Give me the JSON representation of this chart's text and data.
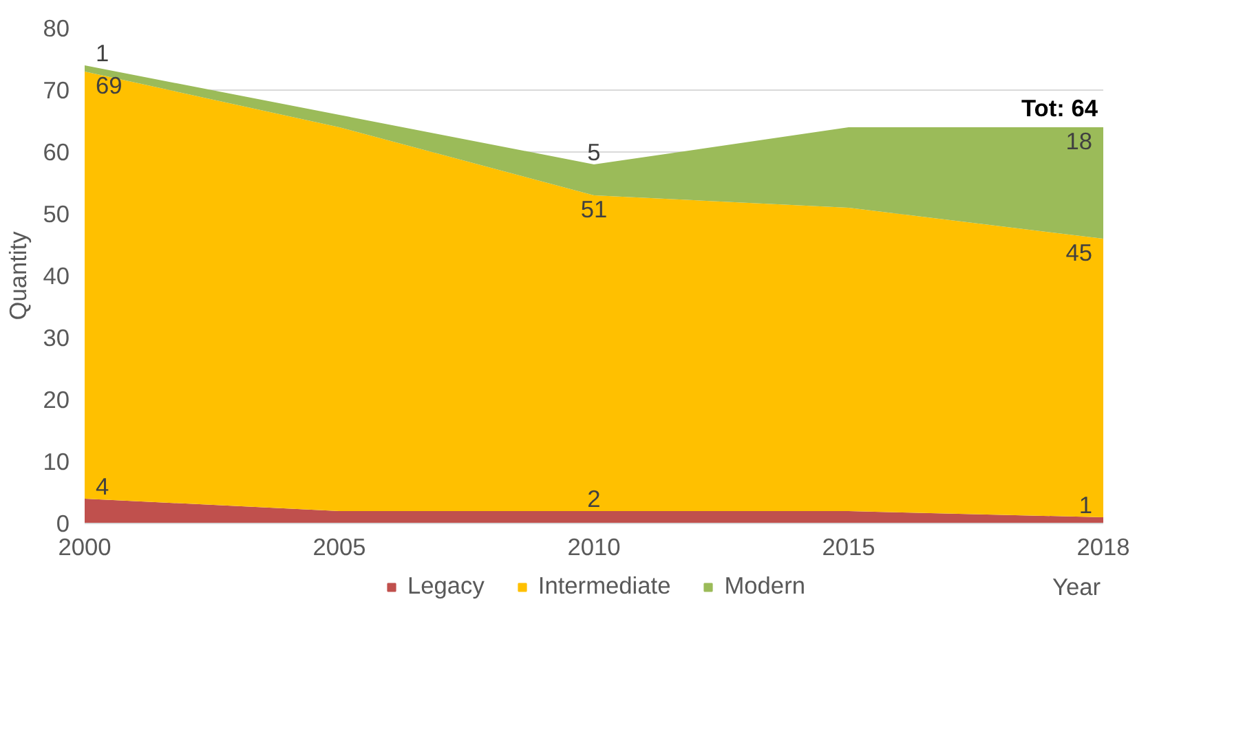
{
  "chart_data": {
    "type": "area",
    "stacked": true,
    "xlabel": "Year",
    "ylabel": "Quantity",
    "categories": [
      "2000",
      "2005",
      "2010",
      "2015",
      "2018"
    ],
    "series": [
      {
        "name": "Legacy",
        "color": "#c0504d",
        "values": [
          4,
          2,
          2,
          2,
          1
        ],
        "value_labels": [
          "4",
          null,
          "2",
          null,
          "1"
        ]
      },
      {
        "name": "Intermediate",
        "color": "#ffc000",
        "values": [
          69,
          62,
          51,
          49,
          45
        ],
        "value_labels": [
          "69",
          null,
          "51",
          null,
          "45"
        ]
      },
      {
        "name": "Modern",
        "color": "#9bbb59",
        "values": [
          1,
          2,
          5,
          13,
          18
        ],
        "value_labels": [
          "1",
          null,
          "5",
          null,
          "18"
        ]
      }
    ],
    "annotations": [
      {
        "text": "Tot: 64",
        "x": "2018",
        "y": 64
      }
    ],
    "ylim": [
      0,
      80
    ],
    "yticks": [
      0,
      10,
      20,
      30,
      40,
      50,
      60,
      70,
      80
    ],
    "grid": "y",
    "legend": "bottom"
  }
}
